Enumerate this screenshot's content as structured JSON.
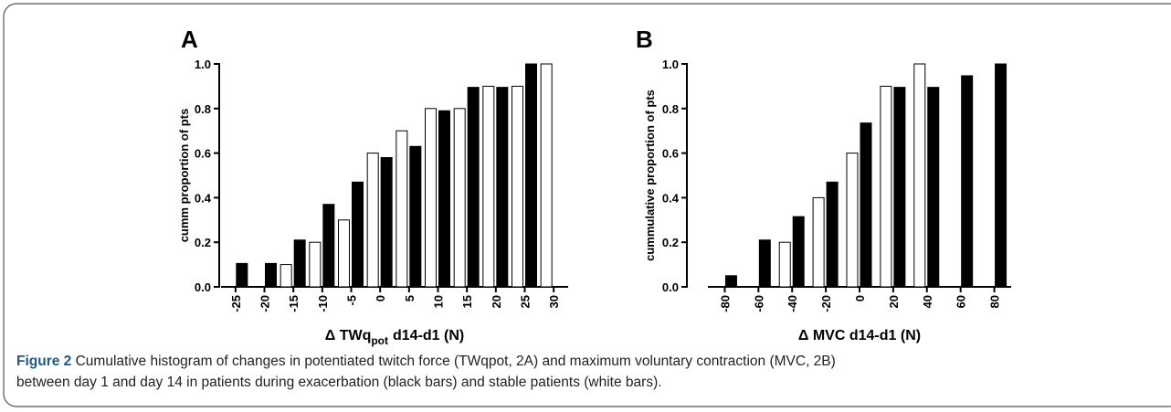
{
  "chart_data": [
    {
      "type": "bar",
      "panel": "A",
      "ylabel": "cumm proportion of pts",
      "xlabel": {
        "main": "Δ TWq",
        "sub": "pot",
        "rest": "d14-d1 (N)"
      },
      "categories": [
        "-25",
        "-20",
        "-15",
        "-10",
        "-5",
        "0",
        "5",
        "10",
        "15",
        "20",
        "25",
        "30"
      ],
      "series": [
        {
          "color": "#ffffff",
          "values": [
            null,
            null,
            0.1,
            0.2,
            0.3,
            0.6,
            0.7,
            0.8,
            0.8,
            0.9,
            0.9,
            1.0
          ]
        },
        {
          "color": "#000000",
          "values": [
            0.105,
            0.105,
            0.21,
            0.37,
            0.47,
            0.58,
            0.63,
            0.79,
            0.895,
            0.895,
            1.0,
            null
          ]
        }
      ],
      "ylim": [
        0,
        1
      ],
      "yticks": [
        {
          "value": 0,
          "label": "0.0"
        },
        0.2,
        0.4,
        0.6,
        0.8,
        {
          "value": 1,
          "label": "1.0"
        }
      ]
    },
    {
      "type": "bar",
      "panel": "B",
      "ylabel": "cummulative proportion of pts",
      "xlabel": {
        "main": "Δ MVC d14-d1 (N)"
      },
      "categories": [
        "-80",
        "-60",
        "-40",
        "-20",
        "0",
        "20",
        "40",
        "60",
        "80"
      ],
      "series": [
        {
          "color": "#ffffff",
          "values": [
            null,
            null,
            0.2,
            0.4,
            0.6,
            0.9,
            1.0,
            null,
            null
          ]
        },
        {
          "color": "#000000",
          "values": [
            0.05,
            0.21,
            0.315,
            0.47,
            0.735,
            0.895,
            0.895,
            0.947,
            1.0
          ]
        }
      ],
      "ylim": [
        0,
        1
      ],
      "yticks": [
        {
          "value": 0,
          "label": "0.0"
        },
        0.2,
        0.4,
        0.6,
        0.8,
        {
          "value": 1,
          "label": "1.0"
        }
      ]
    }
  ],
  "caption": {
    "label": "Figure 2",
    "lines": [
      "Cumulative histogram of changes in potentiated twitch force (TWqpot, 2A) and maximum voluntary contraction (MVC, 2B)",
      "between day 1 and day 14 in patients during exacerbation (black bars) and stable patients (white bars)."
    ]
  }
}
